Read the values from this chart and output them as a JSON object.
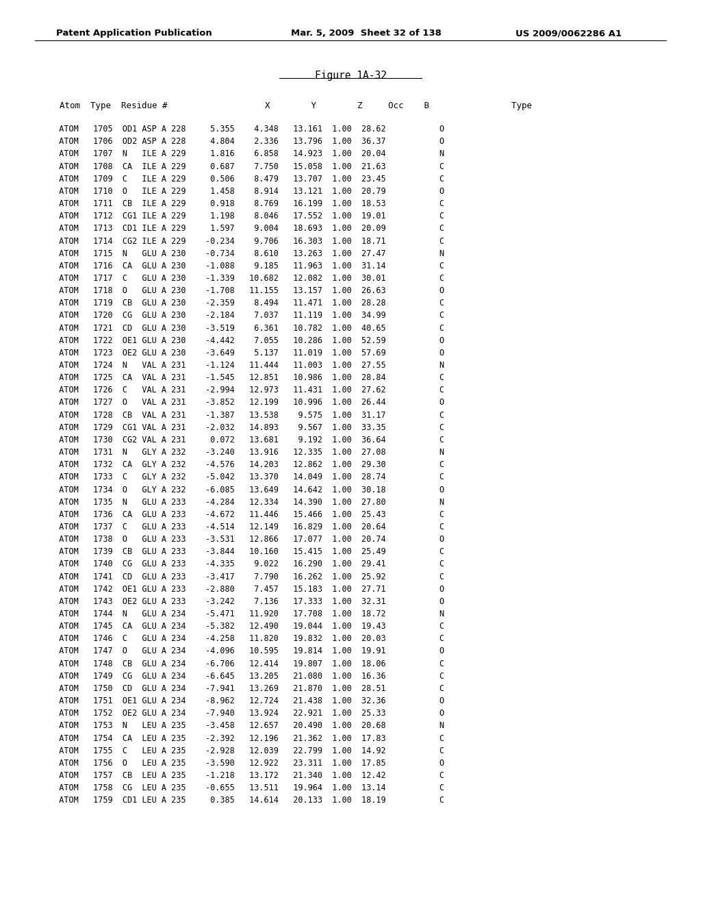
{
  "header_left": "Patent Application Publication",
  "header_mid": "Mar. 5, 2009  Sheet 32 of 138",
  "header_right": "US 2009/0062286 A1",
  "figure_title": "Figure 1A-32",
  "bg_color": "#ffffff",
  "text_color": "#000000",
  "header_fontsize": 9.5,
  "title_fontsize": 10.5,
  "col_header_fontsize": 9.0,
  "data_fontsize": 8.5,
  "rows": [
    [
      "ATOM",
      "1705",
      "OD1",
      "ASP",
      "A",
      "228",
      "5.355",
      "4.348",
      "13.161",
      "1.00",
      "28.62",
      "O"
    ],
    [
      "ATOM",
      "1706",
      "OD2",
      "ASP",
      "A",
      "228",
      "4.804",
      "2.336",
      "13.796",
      "1.00",
      "36.37",
      "O"
    ],
    [
      "ATOM",
      "1707",
      "N",
      "ILE",
      "A",
      "229",
      "1.816",
      "6.858",
      "14.923",
      "1.00",
      "20.04",
      "N"
    ],
    [
      "ATOM",
      "1708",
      "CA",
      "ILE",
      "A",
      "229",
      "0.687",
      "7.750",
      "15.058",
      "1.00",
      "21.63",
      "C"
    ],
    [
      "ATOM",
      "1709",
      "C",
      "ILE",
      "A",
      "229",
      "0.506",
      "8.479",
      "13.707",
      "1.00",
      "23.45",
      "C"
    ],
    [
      "ATOM",
      "1710",
      "O",
      "ILE",
      "A",
      "229",
      "1.458",
      "8.914",
      "13.121",
      "1.00",
      "20.79",
      "O"
    ],
    [
      "ATOM",
      "1711",
      "CB",
      "ILE",
      "A",
      "229",
      "0.918",
      "8.769",
      "16.199",
      "1.00",
      "18.53",
      "C"
    ],
    [
      "ATOM",
      "1712",
      "CG1",
      "ILE",
      "A",
      "229",
      "1.198",
      "8.046",
      "17.552",
      "1.00",
      "19.01",
      "C"
    ],
    [
      "ATOM",
      "1713",
      "CD1",
      "ILE",
      "A",
      "229",
      "1.597",
      "9.004",
      "18.693",
      "1.00",
      "20.09",
      "C"
    ],
    [
      "ATOM",
      "1714",
      "CG2",
      "ILE",
      "A",
      "229",
      "-0.234",
      "9.706",
      "16.303",
      "1.00",
      "18.71",
      "C"
    ],
    [
      "ATOM",
      "1715",
      "N",
      "GLU",
      "A",
      "230",
      "-0.734",
      "8.610",
      "13.263",
      "1.00",
      "27.47",
      "N"
    ],
    [
      "ATOM",
      "1716",
      "CA",
      "GLU",
      "A",
      "230",
      "-1.088",
      "9.185",
      "11.963",
      "1.00",
      "31.14",
      "C"
    ],
    [
      "ATOM",
      "1717",
      "C",
      "GLU",
      "A",
      "230",
      "-1.339",
      "10.682",
      "12.082",
      "1.00",
      "30.01",
      "C"
    ],
    [
      "ATOM",
      "1718",
      "O",
      "GLU",
      "A",
      "230",
      "-1.708",
      "11.155",
      "13.157",
      "1.00",
      "26.63",
      "O"
    ],
    [
      "ATOM",
      "1719",
      "CB",
      "GLU",
      "A",
      "230",
      "-2.359",
      "8.494",
      "11.471",
      "1.00",
      "28.28",
      "C"
    ],
    [
      "ATOM",
      "1720",
      "CG",
      "GLU",
      "A",
      "230",
      "-2.184",
      "7.037",
      "11.119",
      "1.00",
      "34.99",
      "C"
    ],
    [
      "ATOM",
      "1721",
      "CD",
      "GLU",
      "A",
      "230",
      "-3.519",
      "6.361",
      "10.782",
      "1.00",
      "40.65",
      "C"
    ],
    [
      "ATOM",
      "1722",
      "OE1",
      "GLU",
      "A",
      "230",
      "-4.442",
      "7.055",
      "10.286",
      "1.00",
      "52.59",
      "O"
    ],
    [
      "ATOM",
      "1723",
      "OE2",
      "GLU",
      "A",
      "230",
      "-3.649",
      "5.137",
      "11.019",
      "1.00",
      "57.69",
      "O"
    ],
    [
      "ATOM",
      "1724",
      "N",
      "VAL",
      "A",
      "231",
      "-1.124",
      "11.444",
      "11.003",
      "1.00",
      "27.55",
      "N"
    ],
    [
      "ATOM",
      "1725",
      "CA",
      "VAL",
      "A",
      "231",
      "-1.545",
      "12.851",
      "10.986",
      "1.00",
      "28.84",
      "C"
    ],
    [
      "ATOM",
      "1726",
      "C",
      "VAL",
      "A",
      "231",
      "-2.994",
      "12.973",
      "11.431",
      "1.00",
      "27.62",
      "C"
    ],
    [
      "ATOM",
      "1727",
      "O",
      "VAL",
      "A",
      "231",
      "-3.852",
      "12.199",
      "10.996",
      "1.00",
      "26.44",
      "O"
    ],
    [
      "ATOM",
      "1728",
      "CB",
      "VAL",
      "A",
      "231",
      "-1.387",
      "13.538",
      "9.575",
      "1.00",
      "31.17",
      "C"
    ],
    [
      "ATOM",
      "1729",
      "CG1",
      "VAL",
      "A",
      "231",
      "-2.032",
      "14.893",
      "9.567",
      "1.00",
      "33.35",
      "C"
    ],
    [
      "ATOM",
      "1730",
      "CG2",
      "VAL",
      "A",
      "231",
      "0.072",
      "13.681",
      "9.192",
      "1.00",
      "36.64",
      "C"
    ],
    [
      "ATOM",
      "1731",
      "N",
      "GLY",
      "A",
      "232",
      "-3.240",
      "13.916",
      "12.335",
      "1.00",
      "27.08",
      "N"
    ],
    [
      "ATOM",
      "1732",
      "CA",
      "GLY",
      "A",
      "232",
      "-4.576",
      "14.203",
      "12.862",
      "1.00",
      "29.30",
      "C"
    ],
    [
      "ATOM",
      "1733",
      "C",
      "GLY",
      "A",
      "232",
      "-5.042",
      "13.370",
      "14.049",
      "1.00",
      "28.74",
      "C"
    ],
    [
      "ATOM",
      "1734",
      "O",
      "GLY",
      "A",
      "232",
      "-6.085",
      "13.649",
      "14.642",
      "1.00",
      "30.18",
      "O"
    ],
    [
      "ATOM",
      "1735",
      "N",
      "GLU",
      "A",
      "233",
      "-4.284",
      "12.334",
      "14.390",
      "1.00",
      "27.80",
      "N"
    ],
    [
      "ATOM",
      "1736",
      "CA",
      "GLU",
      "A",
      "233",
      "-4.672",
      "11.446",
      "15.466",
      "1.00",
      "25.43",
      "C"
    ],
    [
      "ATOM",
      "1737",
      "C",
      "GLU",
      "A",
      "233",
      "-4.514",
      "12.149",
      "16.829",
      "1.00",
      "20.64",
      "C"
    ],
    [
      "ATOM",
      "1738",
      "O",
      "GLU",
      "A",
      "233",
      "-3.531",
      "12.866",
      "17.077",
      "1.00",
      "20.74",
      "O"
    ],
    [
      "ATOM",
      "1739",
      "CB",
      "GLU",
      "A",
      "233",
      "-3.844",
      "10.160",
      "15.415",
      "1.00",
      "25.49",
      "C"
    ],
    [
      "ATOM",
      "1740",
      "CG",
      "GLU",
      "A",
      "233",
      "-4.335",
      "9.022",
      "16.290",
      "1.00",
      "29.41",
      "C"
    ],
    [
      "ATOM",
      "1741",
      "CD",
      "GLU",
      "A",
      "233",
      "-3.417",
      "7.790",
      "16.262",
      "1.00",
      "25.92",
      "C"
    ],
    [
      "ATOM",
      "1742",
      "OE1",
      "GLU",
      "A",
      "233",
      "-2.880",
      "7.457",
      "15.183",
      "1.00",
      "27.71",
      "O"
    ],
    [
      "ATOM",
      "1743",
      "OE2",
      "GLU",
      "A",
      "233",
      "-3.242",
      "7.136",
      "17.333",
      "1.00",
      "32.31",
      "O"
    ],
    [
      "ATOM",
      "1744",
      "N",
      "GLU",
      "A",
      "234",
      "-5.471",
      "11.920",
      "17.708",
      "1.00",
      "18.72",
      "N"
    ],
    [
      "ATOM",
      "1745",
      "CA",
      "GLU",
      "A",
      "234",
      "-5.382",
      "12.490",
      "19.044",
      "1.00",
      "19.43",
      "C"
    ],
    [
      "ATOM",
      "1746",
      "C",
      "GLU",
      "A",
      "234",
      "-4.258",
      "11.820",
      "19.832",
      "1.00",
      "20.03",
      "C"
    ],
    [
      "ATOM",
      "1747",
      "O",
      "GLU",
      "A",
      "234",
      "-4.096",
      "10.595",
      "19.814",
      "1.00",
      "19.91",
      "O"
    ],
    [
      "ATOM",
      "1748",
      "CB",
      "GLU",
      "A",
      "234",
      "-6.706",
      "12.414",
      "19.807",
      "1.00",
      "18.06",
      "C"
    ],
    [
      "ATOM",
      "1749",
      "CG",
      "GLU",
      "A",
      "234",
      "-6.645",
      "13.205",
      "21.080",
      "1.00",
      "16.36",
      "C"
    ],
    [
      "ATOM",
      "1750",
      "CD",
      "GLU",
      "A",
      "234",
      "-7.941",
      "13.269",
      "21.870",
      "1.00",
      "28.51",
      "C"
    ],
    [
      "ATOM",
      "1751",
      "OE1",
      "GLU",
      "A",
      "234",
      "-8.962",
      "12.724",
      "21.438",
      "1.00",
      "32.36",
      "O"
    ],
    [
      "ATOM",
      "1752",
      "OE2",
      "GLU",
      "A",
      "234",
      "-7.940",
      "13.924",
      "22.921",
      "1.00",
      "25.33",
      "O"
    ],
    [
      "ATOM",
      "1753",
      "N",
      "LEU",
      "A",
      "235",
      "-3.458",
      "12.657",
      "20.490",
      "1.00",
      "20.68",
      "N"
    ],
    [
      "ATOM",
      "1754",
      "CA",
      "LEU",
      "A",
      "235",
      "-2.392",
      "12.196",
      "21.362",
      "1.00",
      "17.83",
      "C"
    ],
    [
      "ATOM",
      "1755",
      "C",
      "LEU",
      "A",
      "235",
      "-2.928",
      "12.039",
      "22.799",
      "1.00",
      "14.92",
      "C"
    ],
    [
      "ATOM",
      "1756",
      "O",
      "LEU",
      "A",
      "235",
      "-3.590",
      "12.922",
      "23.311",
      "1.00",
      "17.85",
      "O"
    ],
    [
      "ATOM",
      "1757",
      "CB",
      "LEU",
      "A",
      "235",
      "-1.218",
      "13.172",
      "21.340",
      "1.00",
      "12.42",
      "C"
    ],
    [
      "ATOM",
      "1758",
      "CG",
      "LEU",
      "A",
      "235",
      "-0.655",
      "13.511",
      "19.964",
      "1.00",
      "13.14",
      "C"
    ],
    [
      "ATOM",
      "1759",
      "CD1",
      "LEU",
      "A",
      "235",
      "0.385",
      "14.614",
      "20.133",
      "1.00",
      "18.19",
      "C"
    ]
  ]
}
